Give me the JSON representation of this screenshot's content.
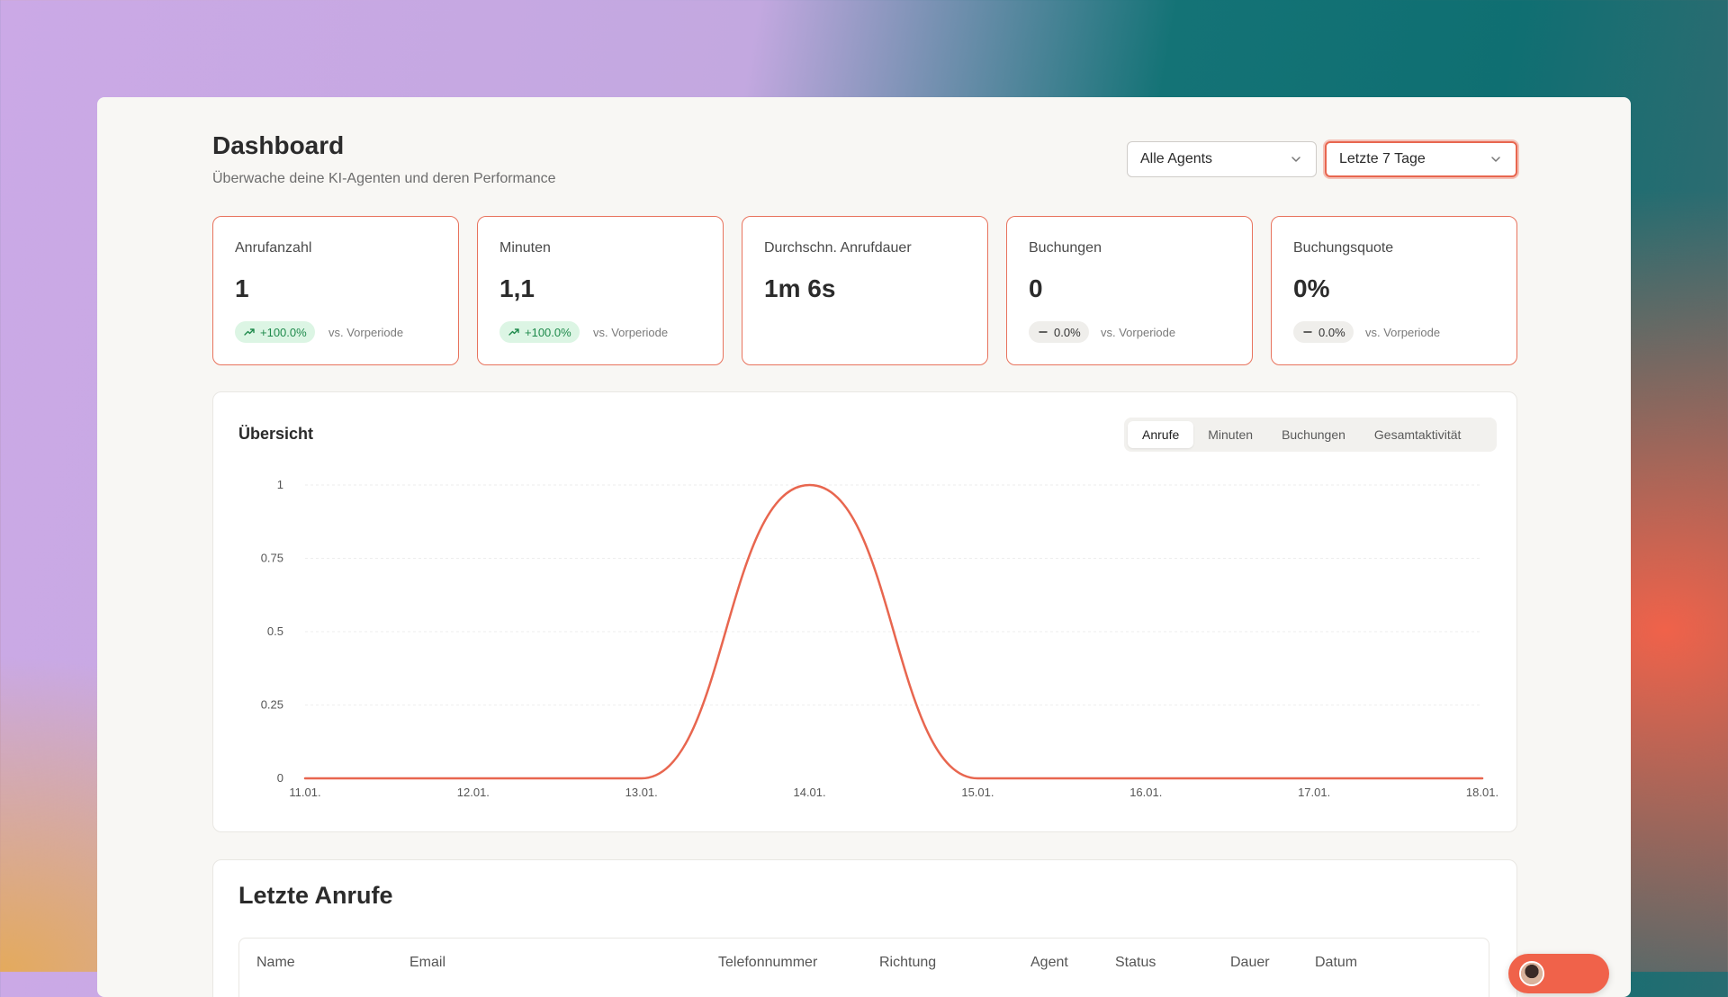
{
  "header": {
    "title": "Dashboard",
    "subtitle": "Überwache deine KI-Agenten und deren Performance",
    "agent_select": "Alle Agents",
    "period_select": "Letzte 7 Tage"
  },
  "stats": [
    {
      "label": "Anrufanzahl",
      "value": "1",
      "change": "+100.0%",
      "trend": "up",
      "compare": "vs. Vorperiode"
    },
    {
      "label": "Minuten",
      "value": "1,1",
      "change": "+100.0%",
      "trend": "up",
      "compare": "vs. Vorperiode"
    },
    {
      "label": "Durchschn. Anrufdauer",
      "value": "1m 6s"
    },
    {
      "label": "Buchungen",
      "value": "0",
      "change": "0.0%",
      "trend": "flat",
      "compare": "vs. Vorperiode"
    },
    {
      "label": "Buchungsquote",
      "value": "0%",
      "change": "0.0%",
      "trend": "flat",
      "compare": "vs. Vorperiode"
    }
  ],
  "overview": {
    "title": "Übersicht",
    "tabs": [
      "Anrufe",
      "Minuten",
      "Buchungen",
      "Gesamtaktivität"
    ],
    "active_tab": "Anrufe"
  },
  "chart_data": {
    "type": "line",
    "categories": [
      "11.01.",
      "12.01.",
      "13.01.",
      "14.01.",
      "15.01.",
      "16.01.",
      "17.01.",
      "18.01."
    ],
    "series": [
      {
        "values": [
          0,
          0,
          0,
          1,
          0,
          0,
          0,
          0
        ]
      }
    ],
    "yticks": [
      "0",
      "0.25",
      "0.5",
      "0.75",
      "1"
    ],
    "ylim": [
      0,
      1
    ],
    "grid": true,
    "legend": "none",
    "line_color": "#e8664f"
  },
  "recent_calls": {
    "title": "Letzte Anrufe",
    "columns": [
      "Name",
      "Email",
      "Telefonnummer",
      "Richtung",
      "Agent",
      "Status",
      "Dauer",
      "Datum"
    ]
  },
  "colors": {
    "accent": "#e8664f",
    "positive": "#1f8a4c"
  }
}
